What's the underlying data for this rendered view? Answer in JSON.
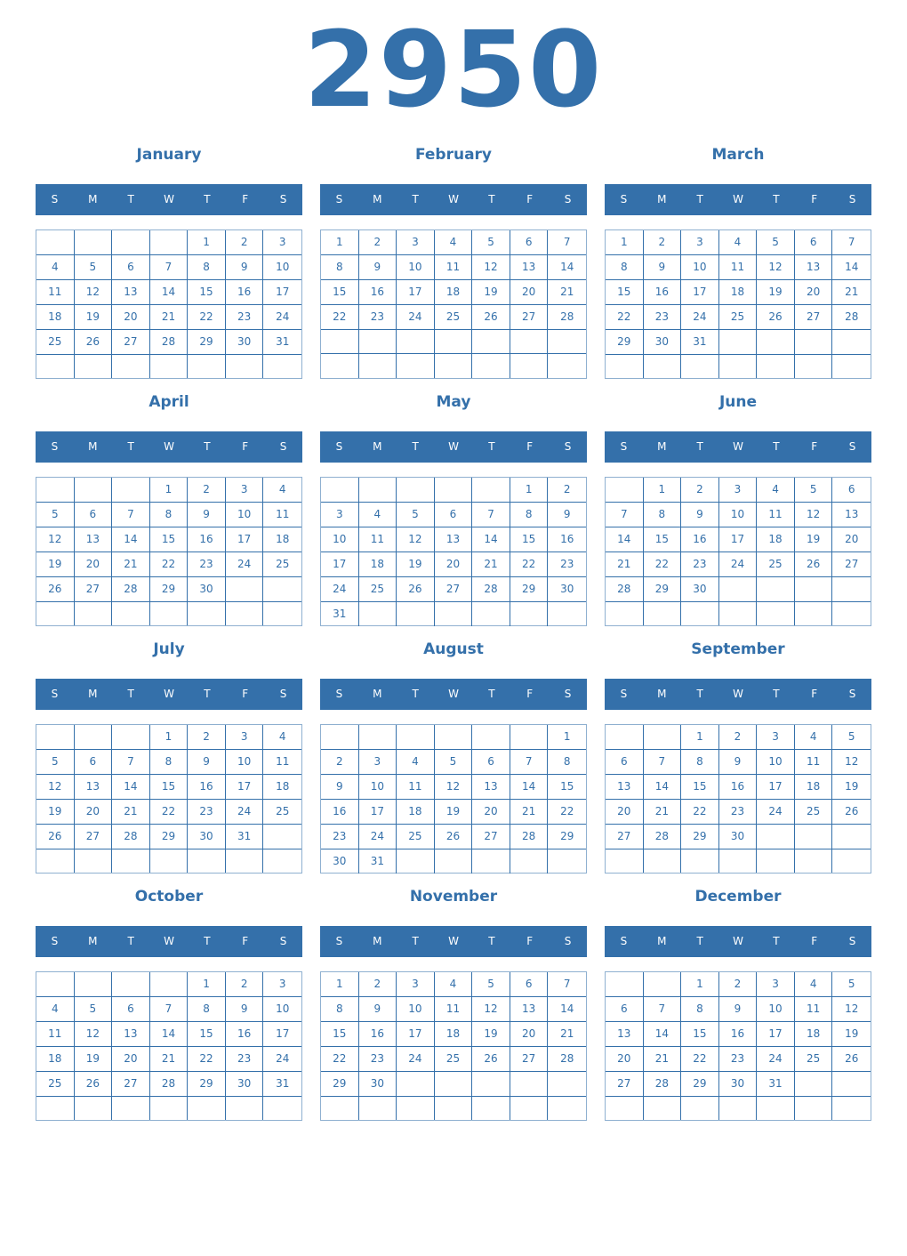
{
  "year": "2950",
  "colors": {
    "accent": "#3470aa",
    "header_text": "#ffffff"
  },
  "weekdays": [
    "S",
    "M",
    "T",
    "W",
    "T",
    "F",
    "S"
  ],
  "months": [
    {
      "name": "January",
      "weeks": [
        [
          null,
          null,
          null,
          null,
          1,
          2,
          3
        ],
        [
          4,
          5,
          6,
          7,
          8,
          9,
          10
        ],
        [
          11,
          12,
          13,
          14,
          15,
          16,
          17
        ],
        [
          18,
          19,
          20,
          21,
          22,
          23,
          24
        ],
        [
          25,
          26,
          27,
          28,
          29,
          30,
          31
        ],
        [
          null,
          null,
          null,
          null,
          null,
          null,
          null
        ]
      ]
    },
    {
      "name": "February",
      "weeks": [
        [
          1,
          2,
          3,
          4,
          5,
          6,
          7
        ],
        [
          8,
          9,
          10,
          11,
          12,
          13,
          14
        ],
        [
          15,
          16,
          17,
          18,
          19,
          20,
          21
        ],
        [
          22,
          23,
          24,
          25,
          26,
          27,
          28
        ],
        [
          null,
          null,
          null,
          null,
          null,
          null,
          null
        ],
        [
          null,
          null,
          null,
          null,
          null,
          null,
          null
        ]
      ]
    },
    {
      "name": "March",
      "weeks": [
        [
          1,
          2,
          3,
          4,
          5,
          6,
          7
        ],
        [
          8,
          9,
          10,
          11,
          12,
          13,
          14
        ],
        [
          15,
          16,
          17,
          18,
          19,
          20,
          21
        ],
        [
          22,
          23,
          24,
          25,
          26,
          27,
          28
        ],
        [
          29,
          30,
          31,
          null,
          null,
          null,
          null
        ],
        [
          null,
          null,
          null,
          null,
          null,
          null,
          null
        ]
      ]
    },
    {
      "name": "April",
      "weeks": [
        [
          null,
          null,
          null,
          1,
          2,
          3,
          4
        ],
        [
          5,
          6,
          7,
          8,
          9,
          10,
          11
        ],
        [
          12,
          13,
          14,
          15,
          16,
          17,
          18
        ],
        [
          19,
          20,
          21,
          22,
          23,
          24,
          25
        ],
        [
          26,
          27,
          28,
          29,
          30,
          null,
          null
        ],
        [
          null,
          null,
          null,
          null,
          null,
          null,
          null
        ]
      ]
    },
    {
      "name": "May",
      "weeks": [
        [
          null,
          null,
          null,
          null,
          null,
          1,
          2
        ],
        [
          3,
          4,
          5,
          6,
          7,
          8,
          9
        ],
        [
          10,
          11,
          12,
          13,
          14,
          15,
          16
        ],
        [
          17,
          18,
          19,
          20,
          21,
          22,
          23
        ],
        [
          24,
          25,
          26,
          27,
          28,
          29,
          30
        ],
        [
          31,
          null,
          null,
          null,
          null,
          null,
          null
        ]
      ]
    },
    {
      "name": "June",
      "weeks": [
        [
          null,
          1,
          2,
          3,
          4,
          5,
          6
        ],
        [
          7,
          8,
          9,
          10,
          11,
          12,
          13
        ],
        [
          14,
          15,
          16,
          17,
          18,
          19,
          20
        ],
        [
          21,
          22,
          23,
          24,
          25,
          26,
          27
        ],
        [
          28,
          29,
          30,
          null,
          null,
          null,
          null
        ],
        [
          null,
          null,
          null,
          null,
          null,
          null,
          null
        ]
      ]
    },
    {
      "name": "July",
      "weeks": [
        [
          null,
          null,
          null,
          1,
          2,
          3,
          4
        ],
        [
          5,
          6,
          7,
          8,
          9,
          10,
          11
        ],
        [
          12,
          13,
          14,
          15,
          16,
          17,
          18
        ],
        [
          19,
          20,
          21,
          22,
          23,
          24,
          25
        ],
        [
          26,
          27,
          28,
          29,
          30,
          31,
          null
        ],
        [
          null,
          null,
          null,
          null,
          null,
          null,
          null
        ]
      ]
    },
    {
      "name": "August",
      "weeks": [
        [
          null,
          null,
          null,
          null,
          null,
          null,
          1
        ],
        [
          2,
          3,
          4,
          5,
          6,
          7,
          8
        ],
        [
          9,
          10,
          11,
          12,
          13,
          14,
          15
        ],
        [
          16,
          17,
          18,
          19,
          20,
          21,
          22
        ],
        [
          23,
          24,
          25,
          26,
          27,
          28,
          29
        ],
        [
          30,
          31,
          null,
          null,
          null,
          null,
          null
        ]
      ]
    },
    {
      "name": "September",
      "weeks": [
        [
          null,
          null,
          1,
          2,
          3,
          4,
          5
        ],
        [
          6,
          7,
          8,
          9,
          10,
          11,
          12
        ],
        [
          13,
          14,
          15,
          16,
          17,
          18,
          19
        ],
        [
          20,
          21,
          22,
          23,
          24,
          25,
          26
        ],
        [
          27,
          28,
          29,
          30,
          null,
          null,
          null
        ],
        [
          null,
          null,
          null,
          null,
          null,
          null,
          null
        ]
      ]
    },
    {
      "name": "October",
      "weeks": [
        [
          null,
          null,
          null,
          null,
          1,
          2,
          3
        ],
        [
          4,
          5,
          6,
          7,
          8,
          9,
          10
        ],
        [
          11,
          12,
          13,
          14,
          15,
          16,
          17
        ],
        [
          18,
          19,
          20,
          21,
          22,
          23,
          24
        ],
        [
          25,
          26,
          27,
          28,
          29,
          30,
          31
        ],
        [
          null,
          null,
          null,
          null,
          null,
          null,
          null
        ]
      ]
    },
    {
      "name": "November",
      "weeks": [
        [
          1,
          2,
          3,
          4,
          5,
          6,
          7
        ],
        [
          8,
          9,
          10,
          11,
          12,
          13,
          14
        ],
        [
          15,
          16,
          17,
          18,
          19,
          20,
          21
        ],
        [
          22,
          23,
          24,
          25,
          26,
          27,
          28
        ],
        [
          29,
          30,
          null,
          null,
          null,
          null,
          null
        ],
        [
          null,
          null,
          null,
          null,
          null,
          null,
          null
        ]
      ]
    },
    {
      "name": "December",
      "weeks": [
        [
          null,
          null,
          1,
          2,
          3,
          4,
          5
        ],
        [
          6,
          7,
          8,
          9,
          10,
          11,
          12
        ],
        [
          13,
          14,
          15,
          16,
          17,
          18,
          19
        ],
        [
          20,
          21,
          22,
          23,
          24,
          25,
          26
        ],
        [
          27,
          28,
          29,
          30,
          31,
          null,
          null
        ],
        [
          null,
          null,
          null,
          null,
          null,
          null,
          null
        ]
      ]
    }
  ]
}
